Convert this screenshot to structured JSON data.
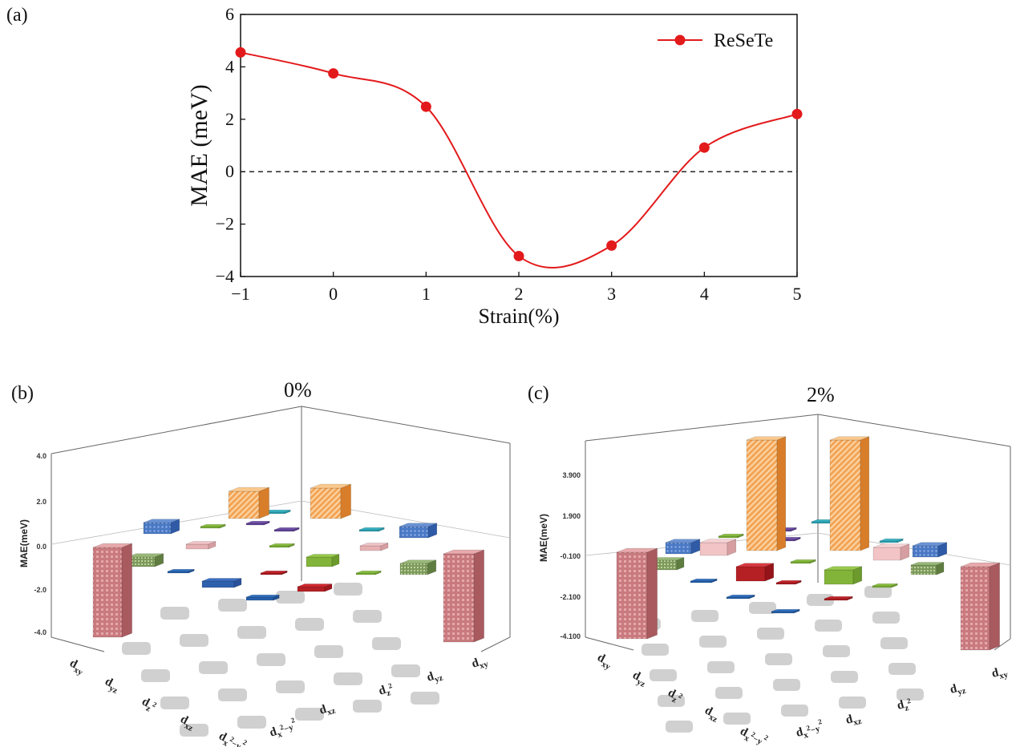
{
  "panels": {
    "a": "(a)",
    "b": "(b)",
    "c": "(c)",
    "b_title": "0%",
    "c_title": "2%"
  },
  "chart_data": [
    {
      "type": "line",
      "panel": "(a)",
      "xlabel": "Strain(%)",
      "ylabel": "MAE (meV)",
      "xlim": [
        -1,
        5
      ],
      "ylim": [
        -4,
        6
      ],
      "xticks": [
        "−1",
        "0",
        "1",
        "2",
        "3",
        "4",
        "5"
      ],
      "yticks": [
        "−4",
        "−2",
        "0",
        "2",
        "4",
        "6"
      ],
      "series": [
        {
          "name": "ReSeTe",
          "color": "#e31a1c",
          "x": [
            -1,
            0,
            1,
            2,
            3,
            4,
            5
          ],
          "y": [
            4.55,
            3.75,
            2.48,
            -3.22,
            -2.82,
            0.92,
            2.2
          ]
        }
      ],
      "reference_line": {
        "y": 0,
        "style": "dashed"
      },
      "legend": "top-right"
    },
    {
      "type": "bar3d",
      "panel": "(b)",
      "title": "0%",
      "zlabel": "MAE(meV)",
      "zticks": [
        "4.0",
        "2.0",
        "0.0",
        "-2.0",
        "-4.0"
      ],
      "row_labels": [
        "dxy",
        "dyz",
        "dz2",
        "dxz",
        "dx2-y2"
      ],
      "col_labels": [
        "dx2-y2",
        "dxz",
        "dz2",
        "dyz",
        "dxy"
      ],
      "bars_note": "two large negative bars (dxy,dxy) about -4.0; positive bars about 1.6"
    },
    {
      "type": "bar3d",
      "panel": "(c)",
      "title": "2%",
      "zlabel": "MAE(meV)",
      "zticks": [
        "3.900",
        "1.900",
        "-0.100",
        "-2.100",
        "-4.100"
      ],
      "row_labels": [
        "dxy",
        "dyz",
        "dz2",
        "dxz",
        "dx2-y2"
      ],
      "col_labels": [
        "dx2-y2",
        "dxz",
        "dz2",
        "dyz",
        "dxy"
      ],
      "bars_note": "two large positive bars about 4.7; two negative bars about -4.1"
    }
  ]
}
